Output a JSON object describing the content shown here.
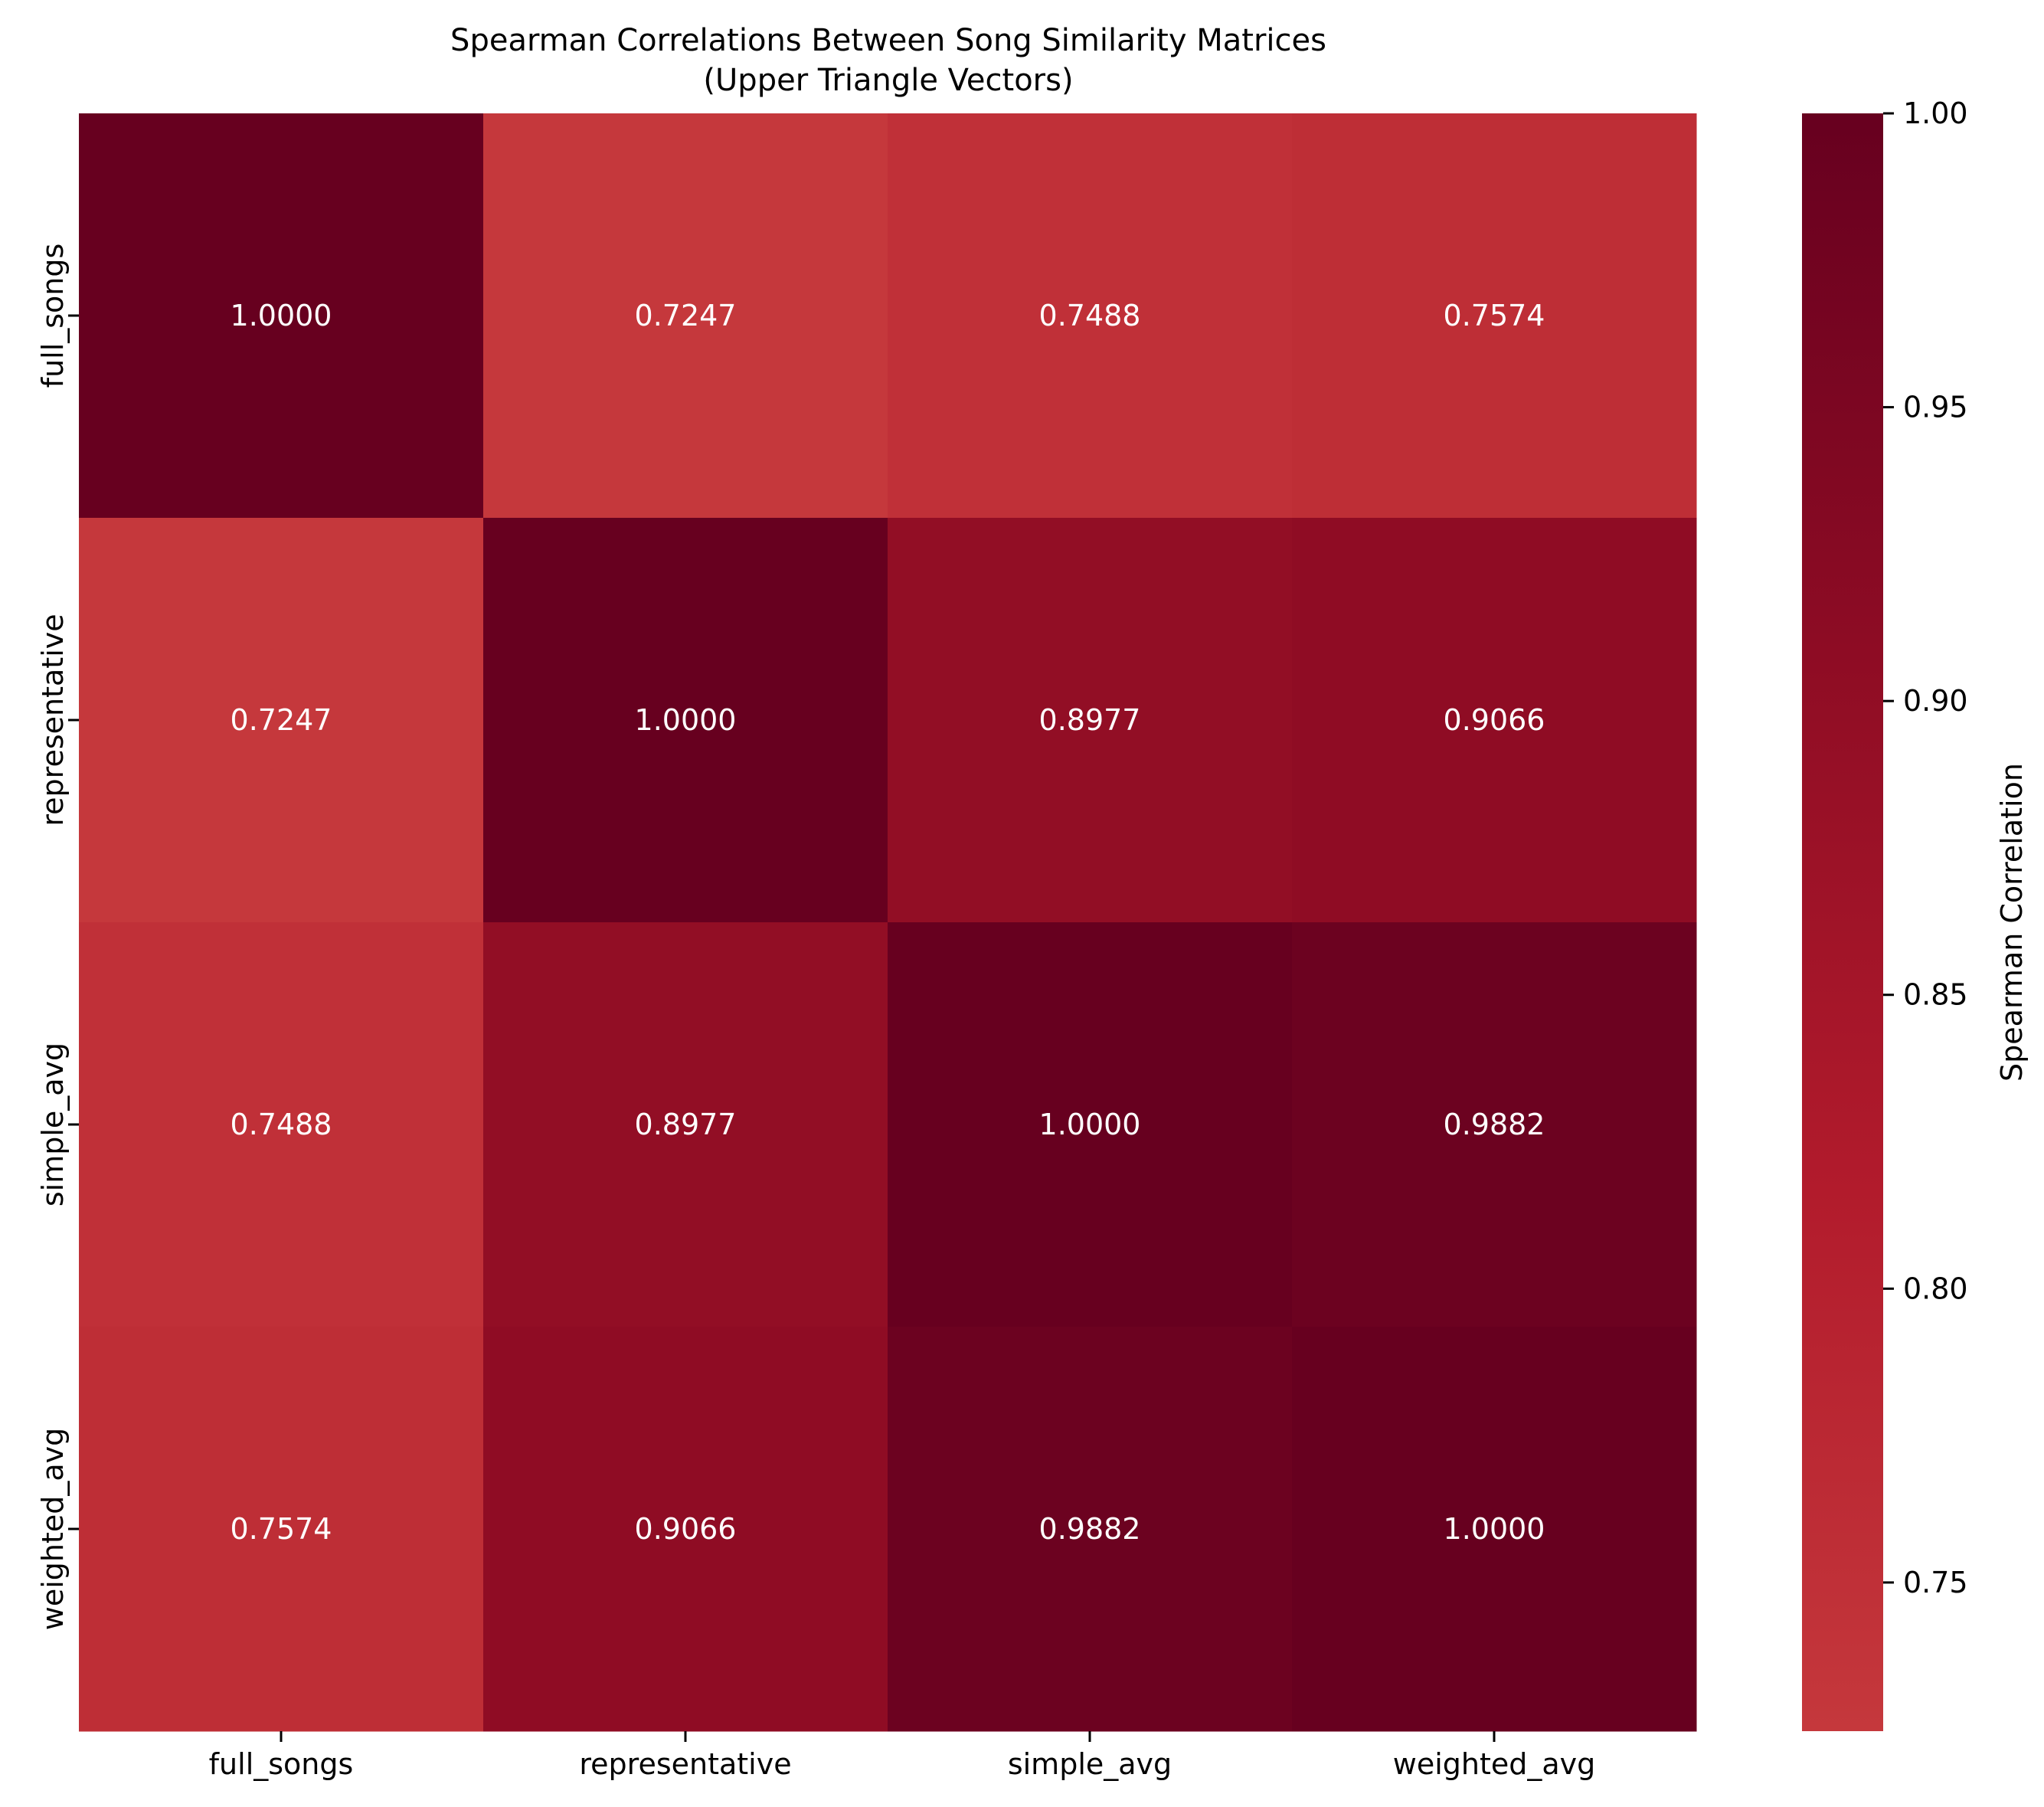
{
  "chart_data": {
    "type": "heatmap",
    "title": [
      "Spearman Correlations Between Song Similarity Matrices",
      "(Upper Triangle Vectors)"
    ],
    "rows": [
      "full_songs",
      "representative",
      "simple_avg",
      "weighted_avg"
    ],
    "columns": [
      "full_songs",
      "representative",
      "simple_avg",
      "weighted_avg"
    ],
    "values": [
      [
        1.0,
        0.7247,
        0.7488,
        0.7574
      ],
      [
        0.7247,
        1.0,
        0.8977,
        0.9066
      ],
      [
        0.7488,
        0.8977,
        1.0,
        0.9882
      ],
      [
        0.7574,
        0.9066,
        0.9882,
        1.0
      ]
    ],
    "value_labels": [
      [
        "1.0000",
        "0.7247",
        "0.7488",
        "0.7574"
      ],
      [
        "0.7247",
        "1.0000",
        "0.8977",
        "0.9066"
      ],
      [
        "0.7488",
        "0.8977",
        "1.0000",
        "0.9882"
      ],
      [
        "0.7574",
        "0.9066",
        "0.9882",
        "1.0000"
      ]
    ],
    "colorbar": {
      "label": "Spearman Correlation",
      "range": [
        0.7247,
        1.0
      ],
      "ticks": [
        "0.75",
        "0.80",
        "0.85",
        "0.90",
        "0.95",
        "1.00"
      ],
      "tick_values": [
        0.75,
        0.8,
        0.85,
        0.9,
        0.95,
        1.0
      ],
      "colors_low_to_high": [
        "#c5383c",
        "#b21b2c",
        "#8e0c24",
        "#67001f"
      ]
    }
  }
}
